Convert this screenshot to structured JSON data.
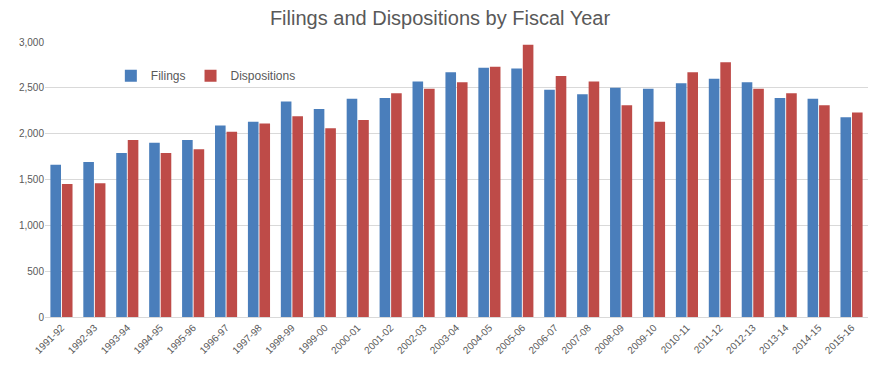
{
  "chart_data": {
    "type": "bar",
    "title": "Filings and Dispositions by Fiscal Year",
    "categories": [
      "1991-92",
      "1992-93",
      "1993-94",
      "1994-95",
      "1995-96",
      "1996-97",
      "1997-98",
      "1998-99",
      "1999-00",
      "2000-01",
      "2001-02",
      "2002-03",
      "2003-04",
      "2004-05",
      "2005-06",
      "2006-07",
      "2007-08",
      "2008-09",
      "2009-10",
      "2010-11",
      "2011-12",
      "2012-13",
      "2013-14",
      "2014-15",
      "2015-16"
    ],
    "series": [
      {
        "name": "Filings",
        "color": "#4a7ebb",
        "values": [
          1660,
          1690,
          1790,
          1900,
          1930,
          2090,
          2130,
          2350,
          2270,
          2380,
          2390,
          2570,
          2670,
          2720,
          2710,
          2480,
          2430,
          2500,
          2490,
          2550,
          2600,
          2560,
          2390,
          2380,
          2180
        ]
      },
      {
        "name": "Dispositions",
        "color": "#be4b48",
        "values": [
          1450,
          1460,
          1930,
          1790,
          1830,
          2020,
          2110,
          2190,
          2060,
          2150,
          2440,
          2490,
          2560,
          2730,
          2970,
          2630,
          2570,
          2310,
          2130,
          2670,
          2780,
          2490,
          2440,
          2310,
          2230
        ]
      }
    ],
    "ylim": [
      0,
      3000
    ],
    "yticks": [
      0,
      500,
      {
        "value": 1000,
        "label": "1,000"
      },
      {
        "value": 1500,
        "label": "1,500"
      },
      {
        "value": 2000,
        "label": "2,000"
      },
      {
        "value": 2500,
        "label": "2,500"
      },
      {
        "value": 3000,
        "label": "3,000"
      }
    ],
    "grid": true,
    "legend": "top-left"
  }
}
